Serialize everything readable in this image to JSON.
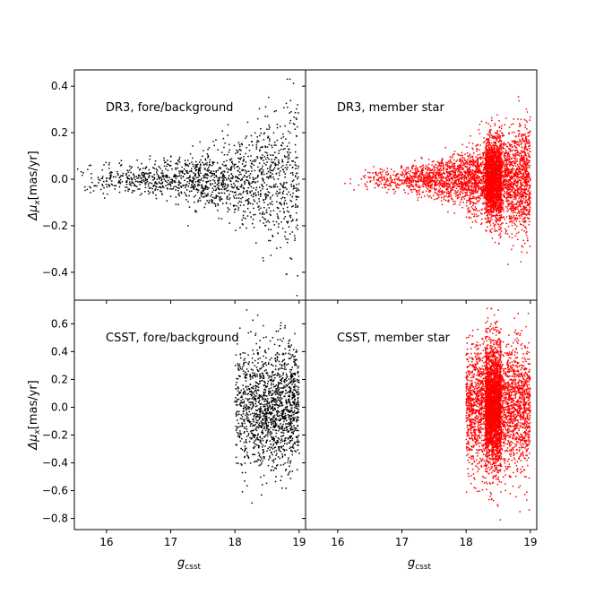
{
  "figure": {
    "xlabel_main": "g",
    "xlabel_sub": "csst",
    "ylabel_prefix": "Δμ",
    "ylabel_sub": "x",
    "ylabel_unit": "[mas/yr]"
  },
  "chart_data": [
    {
      "type": "scatter",
      "title": "DR3, fore/background",
      "series": [
        {
          "color": "#000000",
          "points": []
        }
      ],
      "xlim": [
        15.5,
        19.1
      ],
      "ylim": [
        -0.52,
        0.47
      ],
      "xticks": [
        16,
        17,
        18,
        19
      ],
      "yticks": [
        -0.4,
        -0.2,
        0.0,
        0.2,
        0.4
      ],
      "ytick_labels": [
        "−0.4",
        "−0.2",
        "0.0",
        "0.2",
        "0.4"
      ],
      "show_xtick_labels": false,
      "show_ytick_labels": true,
      "distribution": {
        "x_range": [
          15.55,
          19.0
        ],
        "density_increases_with_x": true,
        "y_spread_at_min_x": 0.03,
        "y_spread_at_max_x": 0.2,
        "y_extremes": [
          -0.5,
          0.43
        ],
        "approx_points": 1500
      }
    },
    {
      "type": "scatter",
      "title": "DR3, member star",
      "series": [
        {
          "color": "#ff0000",
          "points": []
        }
      ],
      "xlim": [
        15.5,
        19.1
      ],
      "ylim": [
        -0.52,
        0.47
      ],
      "xticks": [
        16,
        17,
        18,
        19
      ],
      "yticks": [
        -0.4,
        -0.2,
        0.0,
        0.2,
        0.4
      ],
      "show_xtick_labels": false,
      "show_ytick_labels": false,
      "distribution": {
        "x_range": [
          15.9,
          19.0
        ],
        "dense_band_x": [
          18.3,
          18.55
        ],
        "y_spread_at_min_x": 0.02,
        "y_spread_at_max_x": 0.13,
        "y_extremes": [
          -0.47,
          0.41
        ],
        "approx_points": 5000
      }
    },
    {
      "type": "scatter",
      "title": "CSST, fore/background",
      "series": [
        {
          "color": "#000000",
          "points": []
        }
      ],
      "xlim": [
        15.5,
        19.1
      ],
      "ylim": [
        -0.88,
        0.77
      ],
      "xticks": [
        16,
        17,
        18,
        19
      ],
      "xtick_labels": [
        "16",
        "17",
        "18",
        "19"
      ],
      "yticks": [
        -0.8,
        -0.6,
        -0.4,
        -0.2,
        0.0,
        0.2,
        0.4,
        0.6
      ],
      "ytick_labels": [
        "−0.8",
        "−0.6",
        "−0.4",
        "−0.2",
        "0.0",
        "0.2",
        "0.4",
        "0.6"
      ],
      "show_xtick_labels": true,
      "show_ytick_labels": true,
      "distribution": {
        "x_range": [
          18.0,
          19.0
        ],
        "y_spread": 0.22,
        "y_extremes": [
          -0.71,
          0.7
        ],
        "approx_points": 1500
      }
    },
    {
      "type": "scatter",
      "title": "CSST, member star",
      "series": [
        {
          "color": "#ff0000",
          "points": []
        }
      ],
      "xlim": [
        15.5,
        19.1
      ],
      "ylim": [
        -0.88,
        0.77
      ],
      "xticks": [
        16,
        17,
        18,
        19
      ],
      "xtick_labels": [
        "16",
        "17",
        "18",
        "19"
      ],
      "yticks": [
        -0.8,
        -0.6,
        -0.4,
        -0.2,
        0.0,
        0.2,
        0.4,
        0.6
      ],
      "show_xtick_labels": true,
      "show_ytick_labels": false,
      "distribution": {
        "x_range": [
          18.0,
          19.0
        ],
        "dense_band_x": [
          18.3,
          18.55
        ],
        "y_spread": 0.22,
        "y_extremes": [
          -0.81,
          0.71
        ],
        "approx_points": 5000
      }
    }
  ]
}
